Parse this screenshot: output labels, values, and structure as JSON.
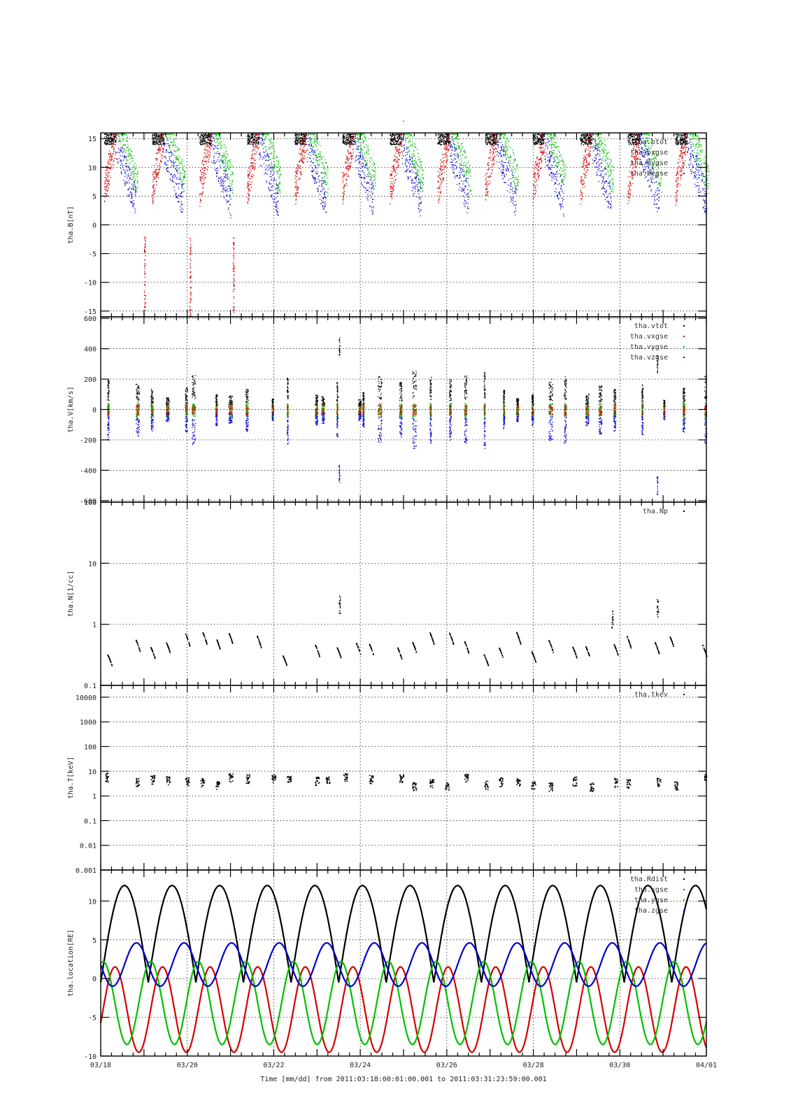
{
  "figure": {
    "title": "-",
    "x_axis_label": "Time [mm/dd]  from 2011:03:18:00:01:00.001  to  2011:03:31:23:59:00.001",
    "x_ticks": [
      "03/18",
      "03/20",
      "03/22",
      "03/24",
      "03/26",
      "03/28",
      "03/30",
      "04/01"
    ]
  },
  "colors": {
    "black": "#000000",
    "red": "#d40000",
    "green": "#00c000",
    "blue": "#0000cc"
  },
  "chart_data": [
    {
      "type": "scatter",
      "ylabel": "tha.B[nT]",
      "ylim": [
        -16,
        16
      ],
      "yscale": "linear",
      "yticks": [
        15,
        10,
        5,
        0,
        -5,
        -10,
        -15
      ],
      "ytick_labels": [
        "15",
        "10",
        "5",
        "0",
        "-5",
        "-10",
        "-15"
      ],
      "legend_placement": "top-right",
      "grid": true,
      "series": [
        {
          "name": "tha.btot",
          "color": "#000000"
        },
        {
          "name": "tha.bxgse",
          "color": "#d40000"
        },
        {
          "name": "tha.bygse",
          "color": "#00c000"
        },
        {
          "name": "tha.bzgse",
          "color": "#0000cc"
        }
      ]
    },
    {
      "type": "scatter",
      "ylabel": "tha.V[km/s]",
      "ylim": [
        -610,
        610
      ],
      "yscale": "linear",
      "yticks": [
        600,
        400,
        200,
        0,
        -200,
        -400,
        -600
      ],
      "ytick_labels": [
        "600",
        "400",
        "200",
        "0",
        "-200",
        "-400",
        "-600"
      ],
      "legend_placement": "top-right",
      "grid": true,
      "series": [
        {
          "name": "tha.vtot",
          "color": "#000000"
        },
        {
          "name": "tha.vxgse",
          "color": "#d40000"
        },
        {
          "name": "tha.vygse",
          "color": "#00c000"
        },
        {
          "name": "tha.vzgse",
          "color": "#0000cc"
        }
      ]
    },
    {
      "type": "scatter",
      "ylabel": "tha.N[1/cc]",
      "ylim": [
        0.1,
        100
      ],
      "yscale": "log",
      "yticks": [
        100,
        10,
        1,
        0.1
      ],
      "ytick_labels": [
        "100",
        "10",
        "1",
        "0.1"
      ],
      "legend_placement": "top-right",
      "grid": true,
      "series": [
        {
          "name": "tha.Np",
          "color": "#000000"
        }
      ]
    },
    {
      "type": "scatter",
      "ylabel": "tha.T[keV]",
      "ylim": [
        0.001,
        30000
      ],
      "yscale": "log",
      "yticks": [
        10000,
        1000,
        100,
        10,
        1,
        0.1,
        0.01,
        0.001
      ],
      "ytick_labels": [
        "10000",
        "1000",
        "100",
        "10",
        "1",
        "0.1",
        "0.01",
        "0.001"
      ],
      "legend_placement": "top-right",
      "grid": true,
      "series": [
        {
          "name": "tha.tkev",
          "color": "#000000"
        }
      ]
    },
    {
      "type": "line",
      "ylabel": "tha.location[RE]",
      "ylim": [
        -10,
        14
      ],
      "yscale": "linear",
      "yticks": [
        10,
        5,
        0,
        -5,
        -10
      ],
      "ytick_labels": [
        "10",
        "5",
        "0",
        "-5",
        "-10"
      ],
      "legend_placement": "top-right",
      "grid": true,
      "orbit_period_days": 1.1,
      "series": [
        {
          "name": "tha.Rdist",
          "color": "#000000",
          "min": -0.5,
          "max": 12
        },
        {
          "name": "tha.xgse",
          "color": "#d40000",
          "min": -9.5,
          "max": 1.5
        },
        {
          "name": "tha.ygse",
          "color": "#00c000",
          "min": -8.5,
          "max": 2.2
        },
        {
          "name": "tha.zgse",
          "color": "#0000cc",
          "min": -1,
          "max": 4.6
        }
      ]
    }
  ]
}
